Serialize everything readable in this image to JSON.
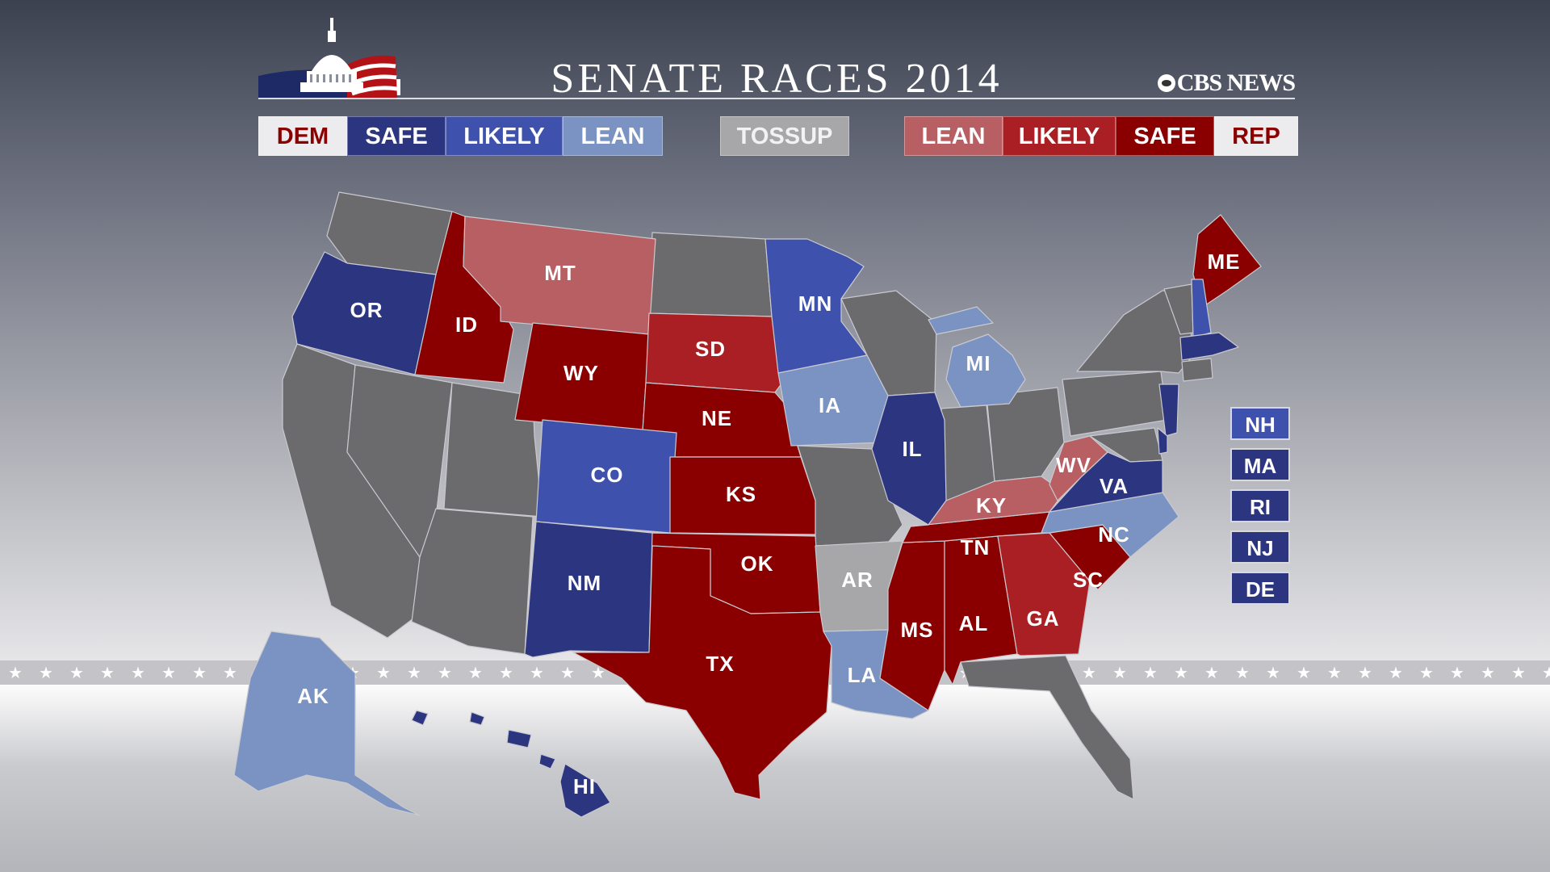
{
  "title": "SENATE RACES 2014",
  "brand": "CBS NEWS",
  "colors": {
    "safe_dem": "#2b3580",
    "likely_dem": "#3e52ad",
    "lean_dem": "#7b93c2",
    "tossup": "#a7a7a9",
    "lean_rep": "#b85f63",
    "likely_rep": "#a91f24",
    "safe_rep": "#8a0000",
    "no_race": "#6b6b6e"
  },
  "legend": {
    "dem": [
      {
        "label": "DEM",
        "category": "label"
      },
      {
        "label": "SAFE",
        "category": "safe_dem"
      },
      {
        "label": "LIKELY",
        "category": "likely_dem"
      },
      {
        "label": "LEAN",
        "category": "lean_dem"
      }
    ],
    "tossup": {
      "label": "TOSSUP",
      "category": "tossup"
    },
    "rep": [
      {
        "label": "LEAN",
        "category": "lean_rep"
      },
      {
        "label": "LIKELY",
        "category": "likely_rep"
      },
      {
        "label": "SAFE",
        "category": "safe_rep"
      },
      {
        "label": "REP",
        "category": "label"
      }
    ]
  },
  "states": [
    {
      "abbr": "OR",
      "category": "safe_dem"
    },
    {
      "abbr": "ID",
      "category": "safe_rep"
    },
    {
      "abbr": "MT",
      "category": "lean_rep"
    },
    {
      "abbr": "WY",
      "category": "safe_rep"
    },
    {
      "abbr": "SD",
      "category": "likely_rep"
    },
    {
      "abbr": "MN",
      "category": "likely_dem"
    },
    {
      "abbr": "NE",
      "category": "safe_rep"
    },
    {
      "abbr": "IA",
      "category": "lean_dem"
    },
    {
      "abbr": "CO",
      "category": "likely_dem"
    },
    {
      "abbr": "KS",
      "category": "safe_rep"
    },
    {
      "abbr": "IL",
      "category": "safe_dem"
    },
    {
      "abbr": "MI",
      "category": "lean_dem"
    },
    {
      "abbr": "OK",
      "category": "safe_rep"
    },
    {
      "abbr": "NM",
      "category": "safe_dem"
    },
    {
      "abbr": "TX",
      "category": "safe_rep"
    },
    {
      "abbr": "AR",
      "category": "tossup"
    },
    {
      "abbr": "LA",
      "category": "lean_dem"
    },
    {
      "abbr": "MS",
      "category": "safe_rep"
    },
    {
      "abbr": "AL",
      "category": "safe_rep"
    },
    {
      "abbr": "TN",
      "category": "safe_rep"
    },
    {
      "abbr": "KY",
      "category": "lean_rep"
    },
    {
      "abbr": "GA",
      "category": "likely_rep"
    },
    {
      "abbr": "SC",
      "category": "safe_rep"
    },
    {
      "abbr": "NC",
      "category": "lean_dem"
    },
    {
      "abbr": "VA",
      "category": "safe_dem"
    },
    {
      "abbr": "WV",
      "category": "lean_rep"
    },
    {
      "abbr": "ME",
      "category": "safe_rep"
    },
    {
      "abbr": "AK",
      "category": "lean_dem"
    },
    {
      "abbr": "HI",
      "category": "safe_dem"
    }
  ],
  "northeast_boxes": [
    {
      "abbr": "NH",
      "category": "likely_dem"
    },
    {
      "abbr": "MA",
      "category": "safe_dem"
    },
    {
      "abbr": "RI",
      "category": "safe_dem"
    },
    {
      "abbr": "NJ",
      "category": "safe_dem"
    },
    {
      "abbr": "DE",
      "category": "safe_dem"
    }
  ]
}
